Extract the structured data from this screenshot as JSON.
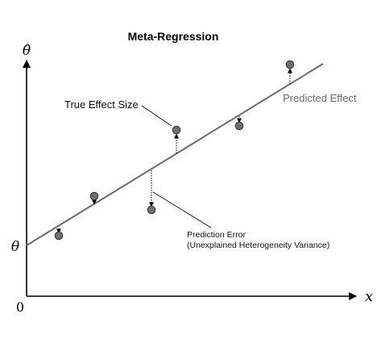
{
  "diagram": {
    "title": "Meta-Regression",
    "y_axis_symbol": "θ̂",
    "x_axis_symbol": "x",
    "origin_label": "0",
    "intercept_label": "θ",
    "true_effect_label": "True Effect Size",
    "predicted_effect_label": "Predicted Effect",
    "prediction_error_line1": "Prediction Error",
    "prediction_error_line2": "(Unexplained Heterogeneity Variance)",
    "colors": {
      "line": "#6b6b6b",
      "point_fill": "#6f6f6f",
      "point_stroke": "#333333",
      "axis": "#000000"
    }
  }
}
